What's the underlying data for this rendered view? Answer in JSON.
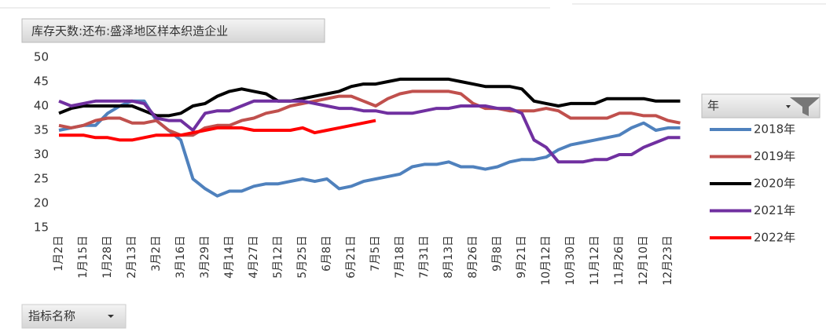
{
  "chart_data": {
    "type": "line",
    "title": "库存天数:还布:盛泽地区样本织造企业",
    "legend_title": "年",
    "filter_button": "指标名称",
    "legend_position": "right",
    "grid": false,
    "ylim": [
      15,
      50
    ],
    "yticks": [
      15,
      20,
      25,
      30,
      35,
      40,
      45,
      50
    ],
    "categories": [
      "1月2日",
      null,
      "1月15日",
      null,
      "1月28日",
      null,
      "2月13日",
      null,
      "3月2日",
      null,
      "3月16日",
      null,
      "3月29日",
      null,
      "4月14日",
      null,
      "4月27日",
      null,
      "5月12日",
      null,
      "5月25日",
      null,
      "6月8日",
      null,
      "6月21日",
      null,
      "7月5日",
      null,
      "7月18日",
      null,
      "7月31日",
      null,
      "8月13日",
      null,
      "8月26日",
      null,
      "9月8日",
      null,
      "9月21日",
      null,
      "10月12日",
      null,
      "10月30日",
      null,
      "11月12日",
      null,
      "11月26日",
      null,
      "12月10日",
      null,
      "12月23日",
      null
    ],
    "series": [
      {
        "name": "2018年",
        "color": "#4f81bd",
        "values": [
          35,
          35.5,
          36,
          36,
          38.5,
          40,
          41,
          41,
          37,
          35,
          33,
          25,
          23,
          21.5,
          22.5,
          22.5,
          23.5,
          24,
          24,
          24.5,
          25,
          24.5,
          25,
          23,
          23.5,
          24.5,
          25,
          25.5,
          26,
          27.5,
          28,
          28,
          28.5,
          27.5,
          27.5,
          27,
          27.5,
          28.5,
          29,
          29,
          29.5,
          31,
          32,
          32.5,
          33,
          33.5,
          34,
          35.5,
          36.5,
          35,
          35.5,
          35.5
        ]
      },
      {
        "name": "2019年",
        "color": "#c0504d",
        "values": [
          36,
          35.5,
          36,
          37,
          37.5,
          37.5,
          36.5,
          36.5,
          37,
          35,
          34,
          34,
          35.5,
          36,
          36,
          37,
          37.5,
          38.5,
          39,
          40,
          40.5,
          41,
          41.5,
          42,
          42,
          41,
          40,
          41.5,
          42.5,
          43,
          43,
          43,
          43,
          42.5,
          40.5,
          39.5,
          39.5,
          39,
          39,
          39,
          39.5,
          39,
          37.5,
          37.5,
          37.5,
          37.5,
          38.5,
          38.5,
          38,
          38,
          37,
          36.5
        ]
      },
      {
        "name": "2020年",
        "color": "#000000",
        "values": [
          38.5,
          39.5,
          40,
          40,
          40,
          40,
          40,
          39,
          38,
          38,
          38.5,
          40,
          40.5,
          42,
          43,
          43.5,
          43,
          42.5,
          41,
          41,
          41.5,
          42,
          42.5,
          43,
          44,
          44.5,
          44.5,
          45,
          45.5,
          45.5,
          45.5,
          45.5,
          45.5,
          45,
          44.5,
          44,
          44,
          44,
          43.5,
          41,
          40.5,
          40,
          40.5,
          40.5,
          40.5,
          41.5,
          41.5,
          41.5,
          41.5,
          41,
          41,
          41
        ]
      },
      {
        "name": "2021年",
        "color": "#7030a0",
        "values": [
          41,
          40,
          40.5,
          41,
          41,
          41,
          41,
          40.5,
          37.5,
          37,
          37,
          35,
          38.5,
          39,
          39,
          40,
          41,
          41,
          41,
          41,
          41,
          40.5,
          40,
          39.5,
          39.5,
          39,
          39,
          38.5,
          38.5,
          38.5,
          39,
          39.5,
          39.5,
          40,
          40,
          40,
          39.5,
          39.5,
          38.5,
          33,
          31.5,
          28.5,
          28.5,
          28.5,
          29,
          29,
          30,
          30,
          31.5,
          32.5,
          33.5,
          33.5
        ]
      },
      {
        "name": "2022年",
        "color": "#ff0000",
        "values": [
          34,
          34,
          34,
          33.5,
          33.5,
          33,
          33,
          33.5,
          34,
          34,
          34,
          34.5,
          35,
          35.5,
          35.5,
          35.5,
          35,
          35,
          35,
          35,
          35.5,
          34.5,
          35,
          35.5,
          36,
          36.5,
          37,
          null,
          null,
          null,
          null,
          null,
          null,
          null,
          null,
          null,
          null,
          null,
          null,
          null,
          null,
          null,
          null,
          null,
          null,
          null,
          null,
          null,
          null,
          null,
          null,
          null
        ]
      }
    ]
  }
}
